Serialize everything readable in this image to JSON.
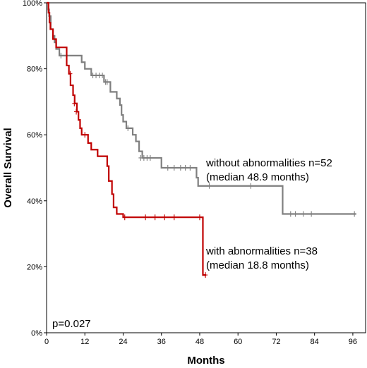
{
  "chart_data": {
    "type": "line",
    "xlabel": "Months",
    "ylabel": "Overall Survival",
    "xlim": [
      0,
      100
    ],
    "ylim": [
      0,
      100
    ],
    "x_ticks": [
      0,
      12,
      24,
      36,
      48,
      60,
      72,
      84,
      96
    ],
    "y_ticks": [
      0,
      20,
      40,
      60,
      80,
      100
    ],
    "y_tick_labels": [
      "0%",
      "20%",
      "40%",
      "60%",
      "80%",
      "100%"
    ],
    "grid": false,
    "legend": "none",
    "series": [
      {
        "color": "#7f7f7f",
        "steps": [
          [
            0,
            100
          ],
          [
            0.5,
            98
          ],
          [
            0.8,
            96
          ],
          [
            1.3,
            92
          ],
          [
            2,
            90
          ],
          [
            2.5,
            88
          ],
          [
            3,
            86
          ],
          [
            4,
            84
          ],
          [
            6,
            84
          ],
          [
            11,
            82
          ],
          [
            12,
            80
          ],
          [
            14,
            78
          ],
          [
            18,
            76
          ],
          [
            20,
            73
          ],
          [
            22,
            71
          ],
          [
            23,
            69
          ],
          [
            23.5,
            66
          ],
          [
            24,
            64
          ],
          [
            25,
            62
          ],
          [
            27,
            60
          ],
          [
            28,
            58
          ],
          [
            29,
            55
          ],
          [
            30,
            53
          ],
          [
            36,
            50
          ],
          [
            47,
            47
          ],
          [
            47.5,
            44.5
          ],
          [
            74,
            44.5
          ],
          [
            74,
            36
          ],
          [
            97,
            36
          ]
        ],
        "end_x": 97,
        "censored": [
          [
            4.5,
            84
          ],
          [
            14.5,
            78
          ],
          [
            15.5,
            78
          ],
          [
            16.5,
            78
          ],
          [
            17.5,
            78
          ],
          [
            18.5,
            76
          ],
          [
            19,
            76
          ],
          [
            25.5,
            62
          ],
          [
            29.5,
            53
          ],
          [
            30.5,
            53
          ],
          [
            31.5,
            53
          ],
          [
            32.5,
            53
          ],
          [
            38,
            50
          ],
          [
            40,
            50
          ],
          [
            42,
            50
          ],
          [
            43.5,
            50
          ],
          [
            45,
            50
          ],
          [
            51,
            44.5
          ],
          [
            64,
            44.5
          ],
          [
            76.5,
            36
          ],
          [
            78,
            36
          ],
          [
            80.5,
            36
          ],
          [
            83,
            36
          ],
          [
            96.5,
            36
          ]
        ]
      },
      {
        "color": "#c00000",
        "steps": [
          [
            0,
            100
          ],
          [
            0.6,
            97
          ],
          [
            0.9,
            94
          ],
          [
            1.2,
            92
          ],
          [
            2,
            89
          ],
          [
            3,
            86.5
          ],
          [
            6,
            86.5
          ],
          [
            6.3,
            81
          ],
          [
            7,
            78.5
          ],
          [
            7.5,
            75
          ],
          [
            8.3,
            72
          ],
          [
            8.8,
            69.5
          ],
          [
            9.5,
            67
          ],
          [
            10,
            64.5
          ],
          [
            10.5,
            62
          ],
          [
            11,
            60
          ],
          [
            13,
            57.5
          ],
          [
            14,
            55.5
          ],
          [
            16,
            53.5
          ],
          [
            19,
            50.5
          ],
          [
            19.5,
            46
          ],
          [
            20.5,
            42
          ],
          [
            21,
            38
          ],
          [
            22,
            36
          ],
          [
            24,
            35
          ],
          [
            49,
            35
          ],
          [
            49,
            17.5
          ],
          [
            50,
            17.5
          ]
        ],
        "end_x": 50,
        "censored": [
          [
            7.4,
            78.5
          ],
          [
            8.7,
            69.5
          ],
          [
            9.3,
            67
          ],
          [
            12,
            60
          ],
          [
            24.5,
            35
          ],
          [
            31,
            35
          ],
          [
            34,
            35
          ],
          [
            37,
            35
          ],
          [
            40,
            35
          ],
          [
            48,
            35
          ],
          [
            49.8,
            17.5
          ]
        ]
      }
    ],
    "annotations": {
      "without_line1": "without abnormalities n=52",
      "without_line2": "(median 48.9 months)",
      "with_line1": "with abnormalities n=38",
      "with_line2": "(median 18.8 months)",
      "pvalue": "p=0.027"
    }
  }
}
